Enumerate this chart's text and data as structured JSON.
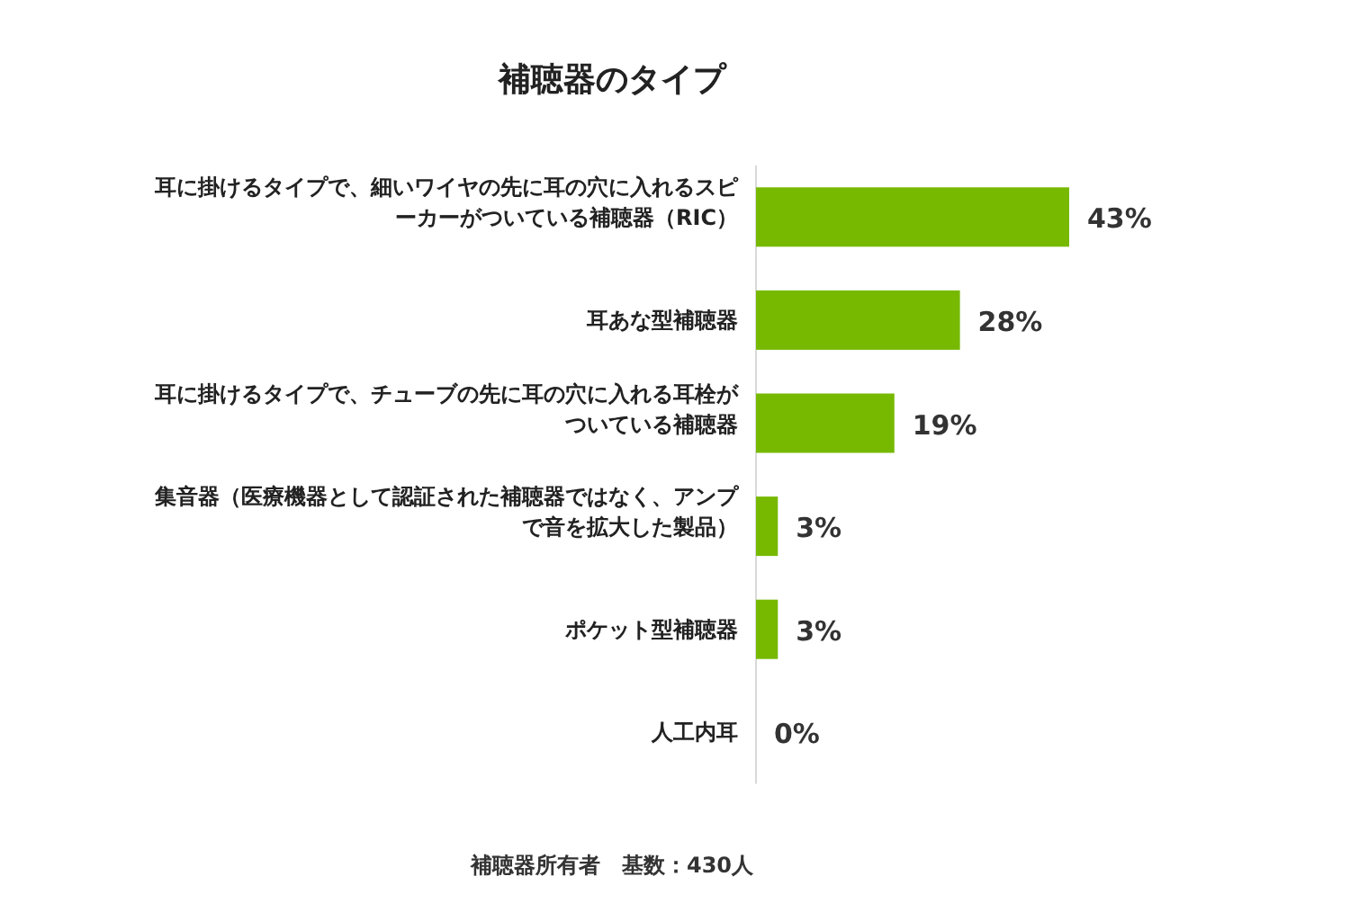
{
  "chart_data": {
    "type": "bar",
    "orientation": "horizontal",
    "title": "補聴器のタイプ",
    "categories": [
      "耳に掛けるタイプで、細いワイヤの先に耳の穴に入れるスピーカーがついている補聴器（RIC）",
      "耳あな型補聴器",
      "耳に掛けるタイプで、チューブの先に耳の穴に入れる耳栓がついている補聴器",
      "集音器（医療機器として認証された補聴器ではなく、アンプで音を拡大した製品）",
      "ポケット型補聴器",
      "人工内耳"
    ],
    "values": [
      43,
      28,
      19,
      3,
      3,
      0
    ],
    "value_labels": [
      "43%",
      "28%",
      "19%",
      "3%",
      "3%",
      "0%"
    ],
    "color": "#76b900",
    "annotations": [
      "補聴器所有者　基数：430人"
    ]
  }
}
